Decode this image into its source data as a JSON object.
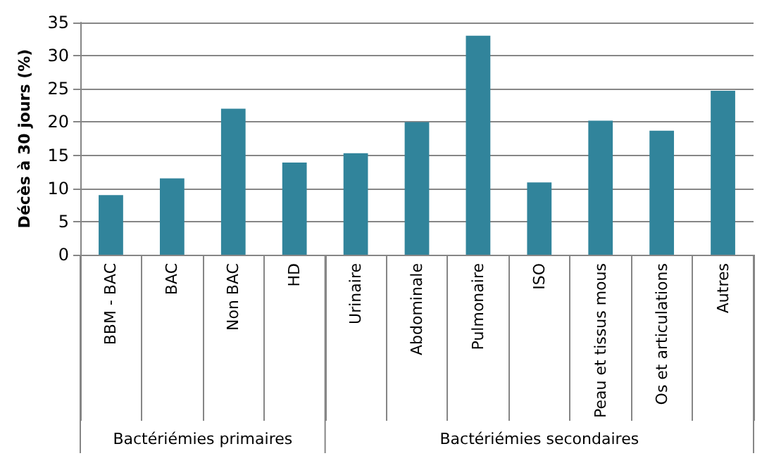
{
  "chart_data": {
    "type": "bar",
    "ylabel": "Décès à 30 jours (%)",
    "categories": [
      "BBM - BAC",
      "BAC",
      "Non BAC",
      "HD",
      "Urinaire",
      "Abdominale",
      "Pulmonaire",
      "ISO",
      "Peau et tissus mous",
      "Os et articulations",
      "Autres"
    ],
    "values": [
      9,
      11.5,
      22,
      13.9,
      15.3,
      20,
      33,
      10.9,
      20.2,
      18.7,
      24.7
    ],
    "color": "#31849b",
    "ylim": [
      0,
      35
    ],
    "yticks": [
      0,
      5,
      10,
      15,
      20,
      25,
      30,
      35
    ],
    "grid": true,
    "annotations": [
      "Bactériémies primaires",
      "Bactériémies secondaires"
    ]
  }
}
